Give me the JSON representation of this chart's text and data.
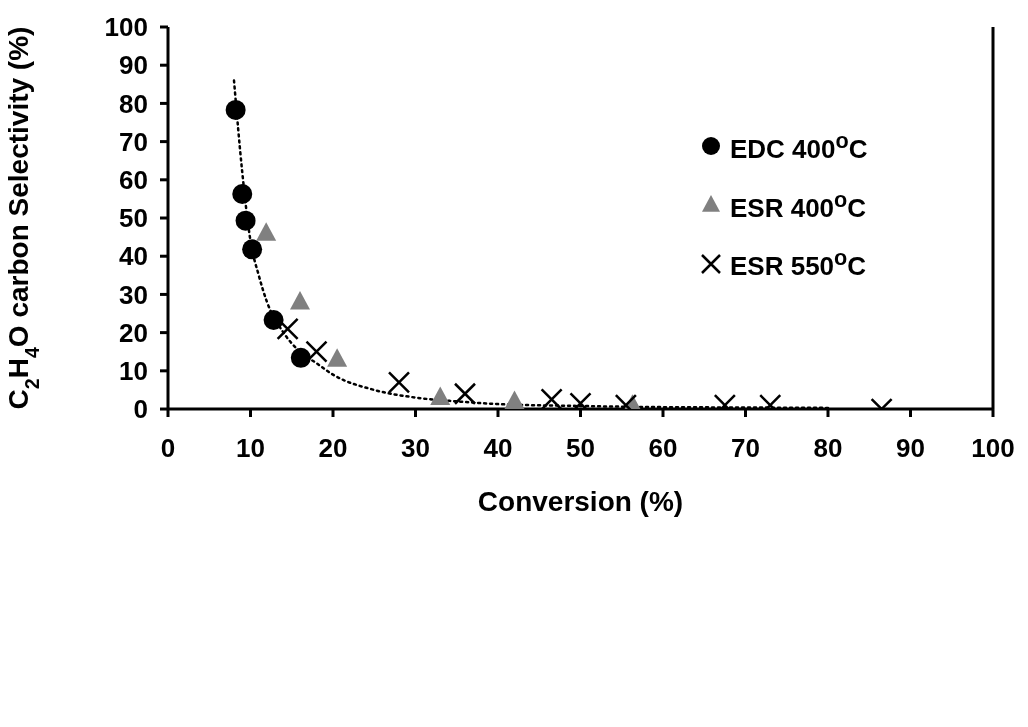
{
  "chart_data": {
    "type": "scatter",
    "xlabel": "Conversion (%)",
    "ylabel": "C$_{2}$H$_{4}$O carbon Selectivity (%)",
    "xlim": [
      0,
      100
    ],
    "xticks": [
      0,
      10,
      20,
      30,
      40,
      50,
      60,
      70,
      80,
      90,
      100
    ],
    "ylim": [
      0,
      100
    ],
    "yticks": [
      0,
      10,
      20,
      30,
      40,
      50,
      60,
      70,
      80,
      90,
      100
    ],
    "grid": false,
    "legend": "top right",
    "series": [
      {
        "name": "EDC 400$^{o}$C",
        "marker": "circle",
        "color": "#000000",
        "x": [
          8.2,
          9,
          9.4,
          10.2,
          12.8,
          16.1
        ],
        "values": [
          78.3,
          56.3,
          49.3,
          41.8,
          23.3,
          13.4
        ]
      },
      {
        "name": "ESR 400$^{o}$C",
        "marker": "triangle",
        "color": "#808080",
        "x": [
          11.9,
          16,
          20.5,
          33,
          42,
          56.3
        ],
        "values": [
          46,
          28,
          13,
          3,
          2,
          1
        ]
      },
      {
        "name": "ESR 550$^{o}$C",
        "marker": "cross",
        "color": "#000000",
        "x": [
          14.5,
          18,
          28,
          36,
          46.5,
          50,
          55.5,
          67.5,
          73,
          86.5
        ],
        "values": [
          21,
          15,
          7,
          4,
          2.5,
          1.5,
          1,
          1,
          1,
          0
        ]
      },
      {
        "type": "line",
        "line_style": "dotted",
        "color": "#000000",
        "x": [
          8,
          9,
          10,
          11,
          12,
          14,
          16,
          18,
          20,
          25,
          30,
          35,
          40,
          50,
          60,
          70,
          80
        ],
        "values": [
          86,
          62,
          44,
          35,
          28,
          20,
          15,
          12,
          9,
          5,
          3,
          2,
          1.3,
          0.8,
          0.5,
          0.4,
          0.3
        ]
      }
    ]
  }
}
